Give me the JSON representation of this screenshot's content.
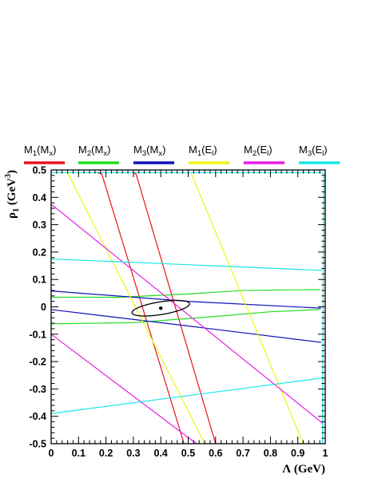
{
  "chart_data": {
    "type": "line",
    "xlabel": "Λ (GeV)",
    "ylabel": "ρ1 (GeV3)",
    "xlim": [
      0,
      1
    ],
    "ylim": [
      -0.5,
      0.5
    ],
    "x_ticks": [
      "0",
      "0.1",
      "0.2",
      "0.3",
      "0.4",
      "0.5",
      "0.6",
      "0.7",
      "0.8",
      "0.9",
      "1"
    ],
    "y_ticks": [
      "0.5",
      "0.4",
      "0.3",
      "0.2",
      "0.1",
      "0",
      "-0.1",
      "-0.2",
      "-0.3",
      "-0.4",
      "-0.5"
    ],
    "legend_position": "top",
    "legend": [
      {
        "label": "M1(Mx)",
        "base": "M",
        "sub": "1",
        "arg": "(M",
        "argsub": "x",
        "close": ")",
        "color": "#e8131b"
      },
      {
        "label": "M2(Mx)",
        "base": "M",
        "sub": "2",
        "arg": "(M",
        "argsub": "x",
        "close": ")",
        "color": "#22dd22"
      },
      {
        "label": "M3(Mx)",
        "base": "M",
        "sub": "3",
        "arg": "(M",
        "argsub": "x",
        "close": ")",
        "color": "#1010bb"
      },
      {
        "label": "M1(El)",
        "base": "M",
        "sub": "1",
        "arg": "(E",
        "argsub": "l",
        "close": ")",
        "color": "#f2f21a"
      },
      {
        "label": "M2(El)",
        "base": "M",
        "sub": "2",
        "arg": "(E",
        "argsub": "l",
        "close": ")",
        "color": "#e81ce8"
      },
      {
        "label": "M3(El)",
        "base": "M",
        "sub": "3",
        "arg": "(E",
        "argsub": "l",
        "close": ")",
        "color": "#1ae6e6"
      }
    ],
    "series": [
      {
        "name": "M1(Mx)",
        "color": "#e8131b",
        "lines": [
          [
            [
              0.17,
              0.49
            ],
            [
              0.185,
              0.485
            ],
            [
              0.485,
              -0.5
            ]
          ],
          [
            [
              0.3,
              0.49
            ],
            [
              0.31,
              0.485
            ],
            [
              0.6,
              -0.5
            ]
          ]
        ]
      },
      {
        "name": "M2(Mx)",
        "color": "#22dd22",
        "lines": [
          [
            [
              0.0,
              0.035
            ],
            [
              0.25,
              0.035
            ],
            [
              0.5,
              0.047
            ],
            [
              0.7,
              0.06
            ],
            [
              0.98,
              0.063
            ]
          ],
          [
            [
              0.0,
              -0.062
            ],
            [
              0.3,
              -0.058
            ],
            [
              0.6,
              -0.035
            ],
            [
              0.8,
              -0.018
            ],
            [
              0.98,
              -0.01
            ]
          ]
        ]
      },
      {
        "name": "M3(Mx)",
        "color": "#1010bb",
        "lines": [
          [
            [
              0.0,
              0.058
            ],
            [
              0.5,
              0.02
            ],
            [
              0.985,
              -0.005
            ]
          ],
          [
            [
              0.0,
              -0.01
            ],
            [
              0.5,
              -0.07
            ],
            [
              0.985,
              -0.13
            ]
          ]
        ]
      },
      {
        "name": "M1(El)",
        "color": "#f2f21a",
        "lines": [
          [
            [
              0.06,
              0.49
            ],
            [
              0.56,
              -0.5
            ]
          ],
          [
            [
              0.51,
              0.49
            ],
            [
              0.92,
              -0.5
            ]
          ]
        ]
      },
      {
        "name": "M2(El)",
        "color": "#e81ce8",
        "lines": [
          [
            [
              0.0,
              0.375
            ],
            [
              0.99,
              -0.425
            ]
          ],
          [
            [
              0.0,
              -0.1
            ],
            [
              0.53,
              -0.5
            ]
          ]
        ]
      },
      {
        "name": "M3(El)",
        "color": "#1ae6e6",
        "lines": [
          [
            [
              0.0,
              0.175
            ],
            [
              0.99,
              0.133
            ]
          ],
          [
            [
              0.0,
              -0.39
            ],
            [
              0.99,
              -0.26
            ]
          ]
        ]
      }
    ],
    "boundary": {
      "color": "#1ae6e6",
      "points": [
        [
          0.0,
          0.49
        ],
        [
          0.99,
          0.49
        ],
        [
          0.995,
          0.485
        ],
        [
          0.99,
          -0.42
        ],
        [
          0.99,
          -0.5
        ]
      ]
    },
    "ellipse": {
      "center": [
        0.4,
        -0.005
      ],
      "semi_major": 0.105,
      "semi_minor": 0.023,
      "tilt": 0.16,
      "color": "#000000"
    },
    "central_point": [
      0.4,
      -0.005
    ]
  }
}
